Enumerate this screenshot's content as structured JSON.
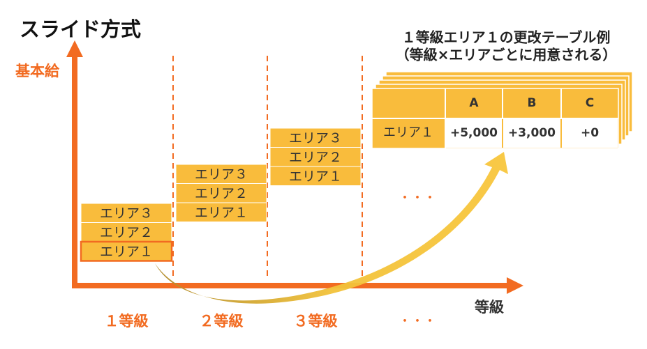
{
  "title": "スライド方式",
  "y_axis_label": "基本給",
  "x_axis_label": "等級",
  "grades": [
    {
      "label": "１等級",
      "areas": [
        "エリア３",
        "エリア２",
        "エリア１"
      ]
    },
    {
      "label": "２等級",
      "areas": [
        "エリア３",
        "エリア２",
        "エリア１"
      ]
    },
    {
      "label": "３等級",
      "areas": [
        "エリア３",
        "エリア２",
        "エリア１"
      ]
    }
  ],
  "ellipsis": [
    "・・・",
    "・・・"
  ],
  "table": {
    "title": "１等級エリア１の更改テーブル例",
    "subtitle": "（等級×エリアごとに用意される）",
    "header": [
      "A",
      "B",
      "C"
    ],
    "row_label": "エリア１",
    "row": [
      "+5,000",
      "+3,000",
      "+0"
    ]
  }
}
